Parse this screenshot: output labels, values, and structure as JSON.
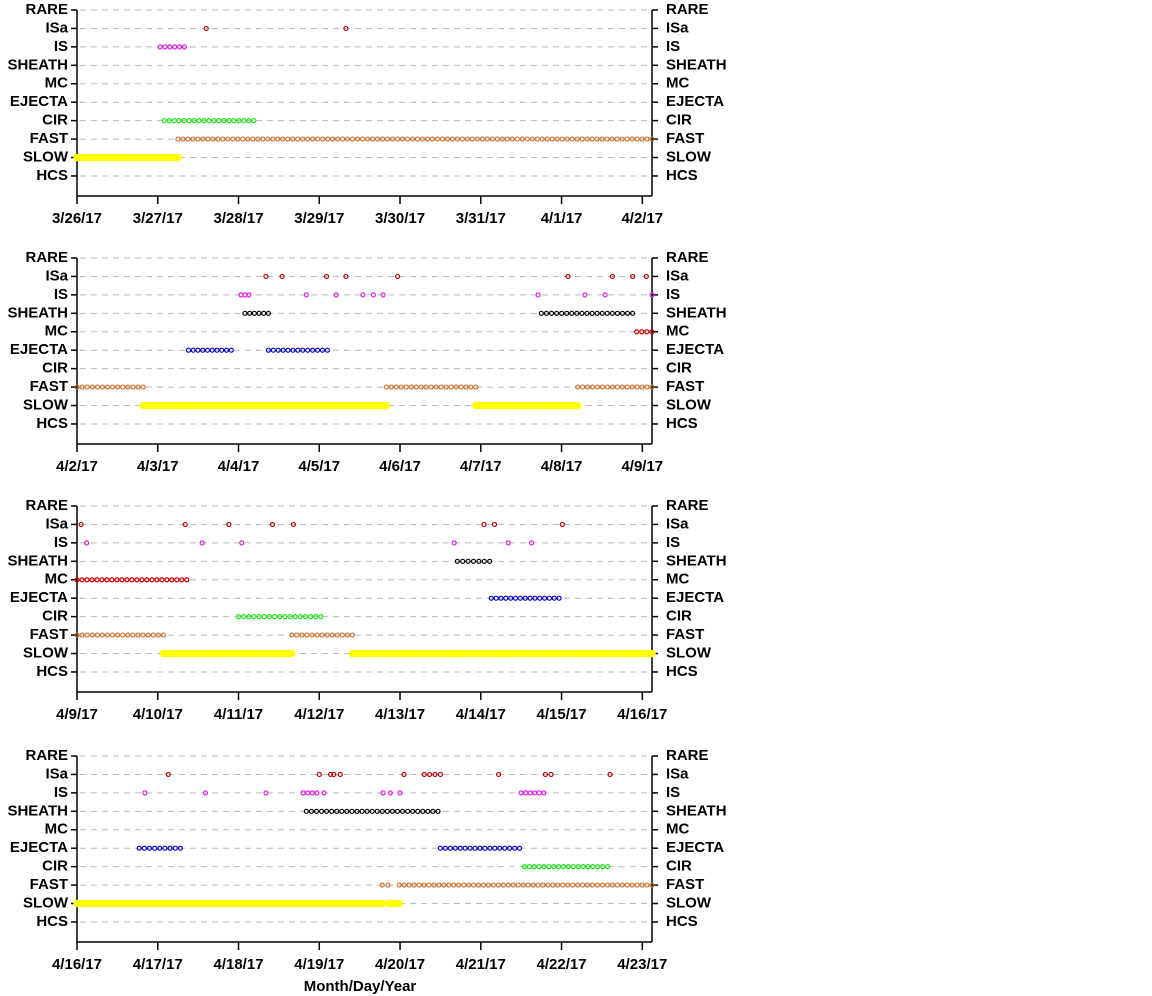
{
  "chart_data": [
    {
      "type": "timeline",
      "categories": [
        "RARE",
        "ISa",
        "IS",
        "SHEATH",
        "MC",
        "EJECTA",
        "CIR",
        "FAST",
        "SLOW",
        "HCS"
      ],
      "colors": [
        "#000000",
        "#b00000",
        "#e020e0",
        "#000000",
        "#d00000",
        "#0000c0",
        "#20e020",
        "#c87030",
        "#ffff00",
        "#000000"
      ],
      "intervals": [
        [],
        [
          [
            1.6,
            1.63
          ],
          [
            3.33,
            3.33
          ]
        ],
        [
          [
            1.03,
            1.33
          ]
        ],
        [],
        [],
        [],
        [
          [
            1.08,
            2.19
          ]
        ],
        [
          [
            1.25,
            7.12
          ]
        ],
        [
          [
            0,
            1.25
          ]
        ],
        []
      ],
      "xlim": [
        0,
        7.12
      ],
      "xticks": [
        {
          "value": 0,
          "label": "3/26/17"
        },
        {
          "value": 1,
          "label": "3/27/17"
        },
        {
          "value": 2,
          "label": "3/28/17"
        },
        {
          "value": 3,
          "label": "3/29/17"
        },
        {
          "value": 4,
          "label": "3/30/17"
        },
        {
          "value": 5,
          "label": "3/31/17"
        },
        {
          "value": 6,
          "label": "4/1/17"
        },
        {
          "value": 7,
          "label": "4/2/17"
        }
      ],
      "grid": true
    },
    {
      "type": "timeline",
      "categories": [
        "RARE",
        "ISa",
        "IS",
        "SHEATH",
        "MC",
        "EJECTA",
        "CIR",
        "FAST",
        "SLOW",
        "HCS"
      ],
      "colors": [
        "#000000",
        "#b00000",
        "#e020e0",
        "#000000",
        "#d00000",
        "#0000c0",
        "#20e020",
        "#c87030",
        "#ffff00",
        "#000000"
      ],
      "intervals": [
        [],
        [
          [
            2.34,
            2.34
          ],
          [
            2.54,
            2.54
          ],
          [
            3.09,
            3.09
          ],
          [
            3.33,
            3.33
          ],
          [
            3.97,
            3.97
          ],
          [
            6.08,
            6.08
          ],
          [
            6.63,
            6.63
          ],
          [
            6.88,
            6.88
          ],
          [
            7.05,
            7.05
          ]
        ],
        [
          [
            2.03,
            2.13
          ],
          [
            2.84,
            2.84
          ],
          [
            3.21,
            3.21
          ],
          [
            3.54,
            3.54
          ],
          [
            3.67,
            3.67
          ],
          [
            3.79,
            3.79
          ],
          [
            5.71,
            5.71
          ],
          [
            6.29,
            6.29
          ],
          [
            6.54,
            6.54
          ],
          [
            7.12,
            7.12
          ]
        ],
        [
          [
            2.08,
            2.37
          ],
          [
            5.75,
            6.88
          ]
        ],
        [
          [
            6.93,
            7.12
          ]
        ],
        [
          [
            1.38,
            1.91
          ],
          [
            2.37,
            3.1
          ]
        ],
        [],
        [
          [
            0,
            0.82
          ],
          [
            3.83,
            4.94
          ],
          [
            6.2,
            7.12
          ]
        ],
        [
          [
            0.82,
            3.83
          ],
          [
            4.94,
            6.2
          ]
        ],
        []
      ],
      "xlim": [
        0,
        7.12
      ],
      "xticks": [
        {
          "value": 0,
          "label": "4/2/17"
        },
        {
          "value": 1,
          "label": "4/3/17"
        },
        {
          "value": 2,
          "label": "4/4/17"
        },
        {
          "value": 3,
          "label": "4/5/17"
        },
        {
          "value": 4,
          "label": "4/6/17"
        },
        {
          "value": 5,
          "label": "4/7/17"
        },
        {
          "value": 6,
          "label": "4/8/17"
        },
        {
          "value": 7,
          "label": "4/9/17"
        }
      ],
      "grid": true
    },
    {
      "type": "timeline",
      "categories": [
        "RARE",
        "ISa",
        "IS",
        "SHEATH",
        "MC",
        "EJECTA",
        "CIR",
        "FAST",
        "SLOW",
        "HCS"
      ],
      "colors": [
        "#000000",
        "#b00000",
        "#e020e0",
        "#000000",
        "#d00000",
        "#0000c0",
        "#20e020",
        "#c87030",
        "#ffff00",
        "#000000"
      ],
      "intervals": [
        [],
        [
          [
            0.05,
            0.05
          ],
          [
            1.34,
            1.34
          ],
          [
            1.88,
            1.88
          ],
          [
            2.42,
            2.42
          ],
          [
            2.68,
            2.68
          ],
          [
            5.04,
            5.04
          ],
          [
            5.17,
            5.17
          ],
          [
            6.01,
            6.01
          ]
        ],
        [
          [
            0.12,
            0.12
          ],
          [
            1.55,
            1.55
          ],
          [
            2.04,
            2.04
          ],
          [
            4.67,
            4.67
          ],
          [
            5.34,
            5.34
          ],
          [
            5.63,
            5.63
          ]
        ],
        [
          [
            4.71,
            5.11
          ]
        ],
        [
          [
            0,
            1.36
          ]
        ],
        [
          [
            5.13,
            5.97
          ]
        ],
        [
          [
            2.0,
            3.02
          ]
        ],
        [
          [
            0,
            1.07
          ],
          [
            2.66,
            3.41
          ]
        ],
        [
          [
            1.07,
            2.66
          ],
          [
            3.41,
            7.12
          ]
        ],
        []
      ],
      "xlim": [
        0,
        7.12
      ],
      "xticks": [
        {
          "value": 0,
          "label": "4/9/17"
        },
        {
          "value": 1,
          "label": "4/10/17"
        },
        {
          "value": 2,
          "label": "4/11/17"
        },
        {
          "value": 3,
          "label": "4/12/17"
        },
        {
          "value": 4,
          "label": "4/13/17"
        },
        {
          "value": 5,
          "label": "4/14/17"
        },
        {
          "value": 6,
          "label": "4/15/17"
        },
        {
          "value": 7,
          "label": "4/16/17"
        }
      ],
      "grid": true
    },
    {
      "type": "timeline",
      "categories": [
        "RARE",
        "ISa",
        "IS",
        "SHEATH",
        "MC",
        "EJECTA",
        "CIR",
        "FAST",
        "SLOW",
        "HCS"
      ],
      "colors": [
        "#000000",
        "#b00000",
        "#e020e0",
        "#000000",
        "#d00000",
        "#0000c0",
        "#20e020",
        "#c87030",
        "#ffff00",
        "#000000"
      ],
      "intervals": [
        [],
        [
          [
            1.13,
            1.13
          ],
          [
            3.0,
            3.0
          ],
          [
            3.14,
            3.18
          ],
          [
            3.26,
            3.26
          ],
          [
            4.05,
            4.05
          ],
          [
            4.3,
            4.5
          ],
          [
            5.22,
            5.22
          ],
          [
            5.8,
            5.87
          ],
          [
            6.6,
            6.6
          ]
        ],
        [
          [
            0.84,
            0.84
          ],
          [
            1.59,
            1.59
          ],
          [
            2.34,
            2.34
          ],
          [
            2.8,
            2.97
          ],
          [
            3.06,
            3.06
          ],
          [
            3.79,
            3.79
          ],
          [
            3.88,
            3.88
          ],
          [
            4.0,
            4.0
          ],
          [
            5.5,
            5.78
          ]
        ],
        [
          [
            2.84,
            4.47
          ]
        ],
        [],
        [
          [
            0.77,
            1.28
          ],
          [
            4.5,
            5.48
          ]
        ],
        [
          [
            5.54,
            6.57
          ]
        ],
        [
          [
            3.78,
            3.85
          ],
          [
            3.99,
            7.12
          ]
        ],
        [
          [
            0,
            3.78
          ],
          [
            3.86,
            3.99
          ]
        ],
        []
      ],
      "xlim": [
        0,
        7.12
      ],
      "xticks": [
        {
          "value": 0,
          "label": "4/16/17"
        },
        {
          "value": 1,
          "label": "4/17/17"
        },
        {
          "value": 2,
          "label": "4/18/17"
        },
        {
          "value": 3,
          "label": "4/19/17"
        },
        {
          "value": 4,
          "label": "4/20/17"
        },
        {
          "value": 5,
          "label": "4/21/17"
        },
        {
          "value": 6,
          "label": "4/22/17"
        },
        {
          "value": 7,
          "label": "4/23/17"
        }
      ],
      "xlabel": "Month/Day/Year",
      "grid": true
    }
  ]
}
